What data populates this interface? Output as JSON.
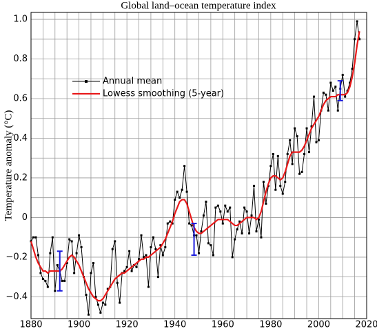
{
  "chart_data": {
    "type": "line",
    "title": "Global land–ocean temperature index",
    "y_label": "Temperature anomaly (°C)",
    "x": [
      1880,
      1881,
      1882,
      1883,
      1884,
      1885,
      1886,
      1887,
      1888,
      1889,
      1890,
      1891,
      1892,
      1893,
      1894,
      1895,
      1896,
      1897,
      1898,
      1899,
      1900,
      1901,
      1902,
      1903,
      1904,
      1905,
      1906,
      1907,
      1908,
      1909,
      1910,
      1911,
      1912,
      1913,
      1914,
      1915,
      1916,
      1917,
      1918,
      1919,
      1920,
      1921,
      1922,
      1923,
      1924,
      1925,
      1926,
      1927,
      1928,
      1929,
      1930,
      1931,
      1932,
      1933,
      1934,
      1935,
      1936,
      1937,
      1938,
      1939,
      1940,
      1941,
      1942,
      1943,
      1944,
      1945,
      1946,
      1947,
      1948,
      1949,
      1950,
      1951,
      1952,
      1953,
      1954,
      1955,
      1956,
      1957,
      1958,
      1959,
      1960,
      1961,
      1962,
      1963,
      1964,
      1965,
      1966,
      1967,
      1968,
      1969,
      1970,
      1971,
      1972,
      1973,
      1974,
      1975,
      1976,
      1977,
      1978,
      1979,
      1980,
      1981,
      1982,
      1983,
      1984,
      1985,
      1986,
      1987,
      1988,
      1989,
      1990,
      1991,
      1992,
      1993,
      1994,
      1995,
      1996,
      1997,
      1998,
      1999,
      2000,
      2001,
      2002,
      2003,
      2004,
      2005,
      2006,
      2007,
      2008,
      2009,
      2010,
      2011,
      2012,
      2013,
      2014,
      2015,
      2016,
      2017
    ],
    "series": [
      {
        "name": "Annual mean",
        "color": "#000000",
        "marker": "square",
        "values": [
          -0.12,
          -0.1,
          -0.1,
          -0.19,
          -0.28,
          -0.31,
          -0.32,
          -0.35,
          -0.18,
          -0.1,
          -0.37,
          -0.24,
          -0.27,
          -0.32,
          -0.32,
          -0.23,
          -0.11,
          -0.12,
          -0.28,
          -0.18,
          -0.09,
          -0.15,
          -0.3,
          -0.39,
          -0.49,
          -0.28,
          -0.23,
          -0.4,
          -0.44,
          -0.48,
          -0.43,
          -0.44,
          -0.36,
          -0.35,
          -0.16,
          -0.12,
          -0.33,
          -0.43,
          -0.28,
          -0.27,
          -0.25,
          -0.17,
          -0.27,
          -0.24,
          -0.25,
          -0.21,
          -0.09,
          -0.2,
          -0.19,
          -0.35,
          -0.15,
          -0.1,
          -0.16,
          -0.3,
          -0.14,
          -0.19,
          -0.15,
          -0.03,
          -0.02,
          -0.03,
          0.09,
          0.13,
          0.1,
          0.14,
          0.26,
          0.13,
          -0.03,
          -0.04,
          -0.09,
          -0.09,
          -0.18,
          -0.07,
          0.01,
          0.08,
          -0.13,
          -0.14,
          -0.19,
          0.05,
          0.06,
          0.03,
          -0.03,
          0.06,
          0.03,
          0.05,
          -0.2,
          -0.11,
          -0.06,
          -0.02,
          -0.08,
          0.05,
          0.03,
          -0.08,
          0.01,
          0.16,
          -0.07,
          -0.01,
          -0.1,
          0.18,
          0.07,
          0.16,
          0.26,
          0.32,
          0.14,
          0.31,
          0.16,
          0.12,
          0.18,
          0.32,
          0.39,
          0.27,
          0.45,
          0.41,
          0.22,
          0.23,
          0.32,
          0.45,
          0.33,
          0.46,
          0.61,
          0.38,
          0.39,
          0.54,
          0.63,
          0.62,
          0.54,
          0.68,
          0.64,
          0.66,
          0.54,
          0.65,
          0.72,
          0.61,
          0.64,
          0.68,
          0.75,
          0.9,
          0.99,
          0.9
        ]
      },
      {
        "name": "Lowess smoothing (5-year)",
        "color": "#e8191a",
        "values": [
          -0.12,
          -0.16,
          -0.2,
          -0.23,
          -0.25,
          -0.27,
          -0.27,
          -0.28,
          -0.27,
          -0.27,
          -0.27,
          -0.27,
          -0.27,
          -0.26,
          -0.24,
          -0.22,
          -0.2,
          -0.19,
          -0.2,
          -0.22,
          -0.24,
          -0.27,
          -0.3,
          -0.33,
          -0.36,
          -0.38,
          -0.4,
          -0.41,
          -0.42,
          -0.42,
          -0.41,
          -0.39,
          -0.37,
          -0.35,
          -0.33,
          -0.31,
          -0.3,
          -0.29,
          -0.28,
          -0.28,
          -0.27,
          -0.26,
          -0.25,
          -0.24,
          -0.23,
          -0.22,
          -0.21,
          -0.21,
          -0.2,
          -0.2,
          -0.19,
          -0.18,
          -0.17,
          -0.16,
          -0.15,
          -0.13,
          -0.11,
          -0.08,
          -0.05,
          -0.02,
          0.02,
          0.05,
          0.08,
          0.09,
          0.09,
          0.07,
          0.03,
          -0.01,
          -0.05,
          -0.07,
          -0.08,
          -0.08,
          -0.07,
          -0.06,
          -0.05,
          -0.04,
          -0.03,
          -0.02,
          -0.01,
          -0.01,
          -0.01,
          -0.01,
          -0.01,
          -0.02,
          -0.03,
          -0.04,
          -0.04,
          -0.03,
          -0.02,
          -0.01,
          0.0,
          0.0,
          0.0,
          0.0,
          -0.01,
          0.0,
          0.03,
          0.08,
          0.13,
          0.17,
          0.2,
          0.21,
          0.21,
          0.2,
          0.19,
          0.2,
          0.23,
          0.27,
          0.31,
          0.33,
          0.33,
          0.33,
          0.33,
          0.34,
          0.36,
          0.39,
          0.42,
          0.45,
          0.47,
          0.49,
          0.51,
          0.54,
          0.57,
          0.59,
          0.6,
          0.61,
          0.61,
          0.61,
          0.62,
          0.62,
          0.62,
          0.62,
          0.63,
          0.66,
          0.71,
          0.78,
          0.87,
          0.94
        ]
      }
    ],
    "error_bars": [
      {
        "x": 1892,
        "y": -0.27,
        "err": 0.1
      },
      {
        "x": 1948,
        "y": -0.11,
        "err": 0.08
      },
      {
        "x": 2009,
        "y": 0.64,
        "err": 0.05
      }
    ],
    "error_color": "#1a1adc",
    "xlim": [
      1880,
      2020
    ],
    "xticks": [
      1880,
      1900,
      1920,
      1940,
      1960,
      1980,
      2000,
      2020
    ],
    "ylim": [
      -0.51,
      1.035
    ],
    "yticks": [
      {
        "value": -0.4,
        "label": "−0.4"
      },
      {
        "value": -0.2,
        "label": "−0.2"
      },
      0,
      0.2,
      0.4,
      0.6,
      0.8,
      {
        "value": 1,
        "label": "1.0"
      }
    ],
    "grid": true,
    "x_minor_per_major": 4,
    "y_minor_per_major": 2,
    "legend": "upper left"
  }
}
